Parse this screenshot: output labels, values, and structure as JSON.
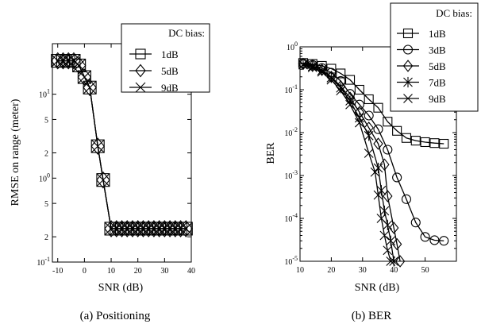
{
  "chart_data": [
    {
      "type": "line",
      "caption": "(a) Positioning",
      "xlabel": "SNR (dB)",
      "ylabel": "RMSE on range (meter)",
      "xlim": [
        -12,
        40
      ],
      "ylim": [
        0.1,
        40
      ],
      "yscale": "log",
      "xticks": [
        "-10",
        "0",
        "10",
        "20",
        "30",
        "40"
      ],
      "xtick_values": [
        -10,
        0,
        10,
        20,
        30,
        40
      ],
      "yticks": [
        {
          "value": 0.1,
          "base": "10",
          "exp": "-1"
        },
        {
          "value": 0.2,
          "base": "2",
          "exp": ""
        },
        {
          "value": 0.5,
          "base": "5",
          "exp": ""
        },
        {
          "value": 1,
          "base": "10",
          "exp": "0"
        },
        {
          "value": 2,
          "base": "2",
          "exp": ""
        },
        {
          "value": 5,
          "base": "5",
          "exp": ""
        },
        {
          "value": 10,
          "base": "10",
          "exp": "1"
        }
      ],
      "legend_title": "DC bias:",
      "legend_position": "top-right",
      "series": [
        {
          "name": "1dB",
          "marker": "square",
          "x": [
            -10,
            -8,
            -6,
            -4,
            -2,
            0,
            2,
            5,
            7,
            10,
            12,
            14,
            16,
            18,
            20,
            22,
            24,
            26,
            28,
            30,
            32,
            34,
            36,
            38
          ],
          "y": [
            25,
            25,
            25,
            25,
            22,
            16,
            12,
            2.4,
            0.95,
            0.25,
            0.25,
            0.25,
            0.25,
            0.25,
            0.25,
            0.25,
            0.25,
            0.25,
            0.25,
            0.25,
            0.25,
            0.25,
            0.25,
            0.25
          ]
        },
        {
          "name": "5dB",
          "marker": "diamond",
          "x": [
            -10,
            -8,
            -6,
            -4,
            -2,
            0,
            2,
            5,
            7,
            10,
            12,
            14,
            16,
            18,
            20,
            22,
            24,
            26,
            28,
            30,
            32,
            34,
            36,
            38
          ],
          "y": [
            25,
            25,
            25,
            25,
            22,
            16,
            12,
            2.4,
            0.95,
            0.25,
            0.25,
            0.25,
            0.25,
            0.25,
            0.25,
            0.25,
            0.25,
            0.25,
            0.25,
            0.25,
            0.25,
            0.25,
            0.25,
            0.25
          ]
        },
        {
          "name": "9dB",
          "marker": "x",
          "x": [
            -10,
            -8,
            -6,
            -4,
            -2,
            0,
            2,
            5,
            7,
            10,
            12,
            14,
            16,
            18,
            20,
            22,
            24,
            26,
            28,
            30,
            32,
            34,
            36,
            38
          ],
          "y": [
            25,
            25,
            25,
            25,
            22,
            16,
            12,
            2.4,
            0.95,
            0.25,
            0.25,
            0.25,
            0.25,
            0.25,
            0.25,
            0.25,
            0.25,
            0.25,
            0.25,
            0.25,
            0.25,
            0.25,
            0.25,
            0.25
          ]
        }
      ]
    },
    {
      "type": "line",
      "caption": "(b) BER",
      "xlabel": "SNR (dB)",
      "ylabel": "BER",
      "xlim": [
        10,
        60
      ],
      "ylim": [
        1e-05,
        1
      ],
      "yscale": "log",
      "xticks": [
        "10",
        "20",
        "30",
        "40",
        "50"
      ],
      "xtick_values": [
        10,
        20,
        30,
        40,
        50
      ],
      "yticks": [
        {
          "value": 1e-05,
          "base": "10",
          "exp": "-5"
        },
        {
          "value": 0.0001,
          "base": "10",
          "exp": "-4"
        },
        {
          "value": 0.001,
          "base": "10",
          "exp": "-3"
        },
        {
          "value": 0.01,
          "base": "10",
          "exp": "-2"
        },
        {
          "value": 0.1,
          "base": "10",
          "exp": "-1"
        },
        {
          "value": 1,
          "base": "10",
          "exp": "0"
        }
      ],
      "legend_title": "DC bias:",
      "legend_position": "top-right",
      "series": [
        {
          "name": "1dB",
          "marker": "square",
          "x": [
            11,
            14,
            17,
            20,
            23,
            26,
            29,
            32,
            35,
            38,
            41,
            44,
            47,
            50,
            53,
            56
          ],
          "y": [
            0.42,
            0.4,
            0.36,
            0.31,
            0.24,
            0.17,
            0.1,
            0.06,
            0.038,
            0.018,
            0.011,
            0.0075,
            0.0065,
            0.006,
            0.0057,
            0.0055
          ]
        },
        {
          "name": "3dB",
          "marker": "circle",
          "x": [
            11,
            14,
            17,
            20,
            23,
            26,
            29,
            32,
            35,
            38,
            41,
            44,
            47,
            50,
            53,
            56
          ],
          "y": [
            0.41,
            0.38,
            0.32,
            0.25,
            0.16,
            0.08,
            0.045,
            0.025,
            0.012,
            0.004,
            0.0009,
            0.00028,
            8e-05,
            3.7e-05,
            3.1e-05,
            3e-05
          ]
        },
        {
          "name": "5dB",
          "marker": "diamond",
          "x": [
            11,
            14,
            17,
            20,
            23,
            26,
            29,
            32,
            35,
            37,
            38,
            40,
            41,
            42
          ],
          "y": [
            0.4,
            0.36,
            0.29,
            0.2,
            0.12,
            0.065,
            0.03,
            0.013,
            0.0055,
            0.0018,
            0.00033,
            6e-05,
            2.5e-05,
            1e-05
          ]
        },
        {
          "name": "7dB",
          "marker": "star",
          "x": [
            11,
            14,
            17,
            20,
            23,
            26,
            29,
            32,
            35,
            36,
            37,
            38,
            39,
            40
          ],
          "y": [
            0.39,
            0.35,
            0.28,
            0.19,
            0.11,
            0.055,
            0.022,
            0.0085,
            0.0015,
            0.00045,
            0.00015,
            7e-05,
            3e-05,
            1e-05
          ]
        },
        {
          "name": "9dB",
          "marker": "x",
          "x": [
            11,
            14,
            17,
            20,
            23,
            26,
            29,
            32,
            34,
            35,
            36,
            37,
            38,
            39
          ],
          "y": [
            0.38,
            0.33,
            0.26,
            0.17,
            0.095,
            0.045,
            0.017,
            0.0033,
            0.0012,
            0.00035,
            0.0001,
            4e-05,
            1.8e-05,
            1e-05
          ]
        }
      ]
    }
  ]
}
